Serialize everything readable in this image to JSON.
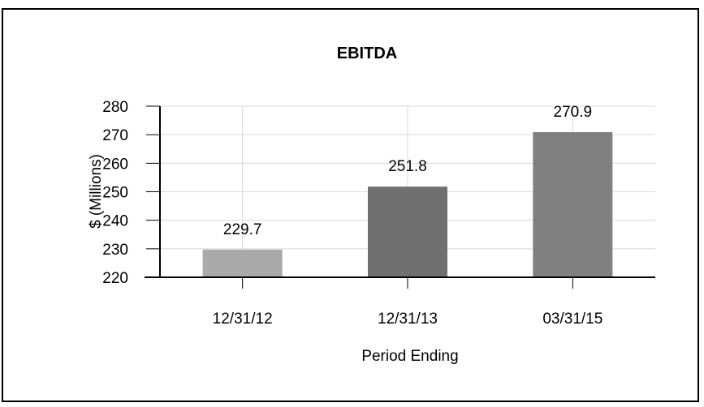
{
  "chart_data": {
    "type": "bar",
    "title": "EBITDA",
    "xlabel": "Period Ending",
    "ylabel": "$ (Millions)",
    "categories": [
      "12/31/12",
      "12/31/13",
      "03/31/15"
    ],
    "values": [
      229.7,
      251.8,
      270.9
    ],
    "data_labels": [
      "229.7",
      "251.8",
      "270.9"
    ],
    "bar_colors": [
      "#aaaaaa",
      "#707070",
      "#808080"
    ],
    "ylim": [
      220,
      280
    ],
    "yticks": [
      220,
      230,
      240,
      250,
      260,
      270,
      280
    ],
    "grid": true,
    "legend": "none"
  }
}
